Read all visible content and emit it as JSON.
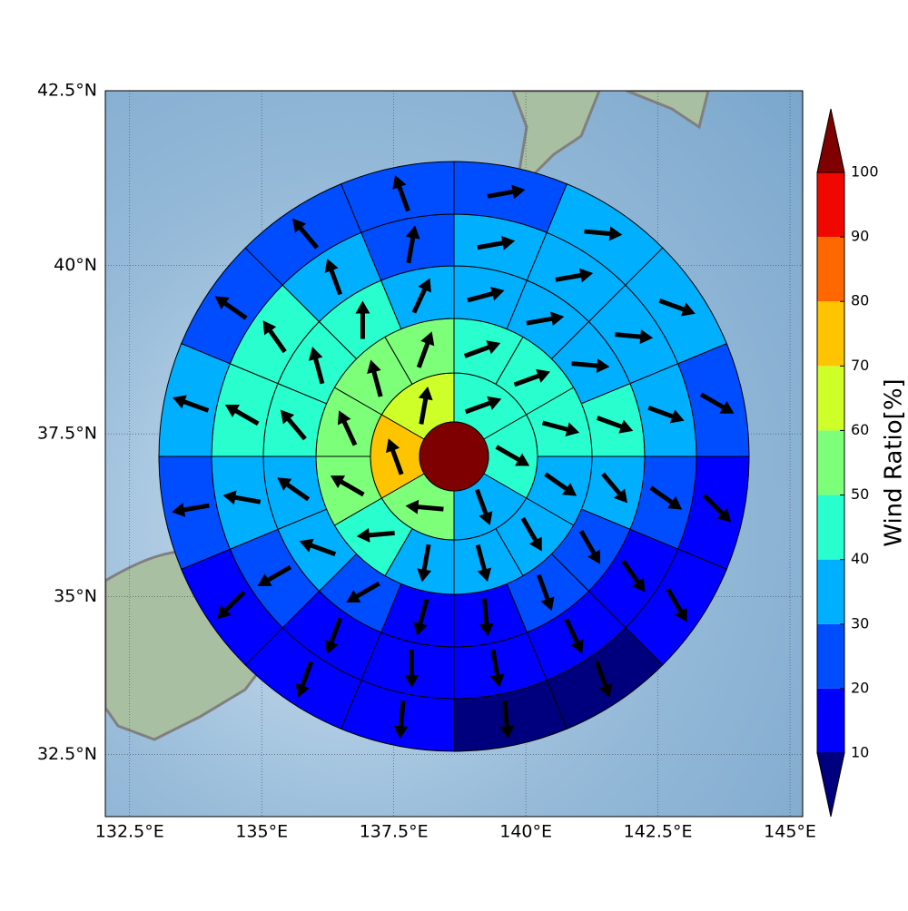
{
  "chart_data": {
    "type": "polar_map",
    "projection": "mercator",
    "grid": true,
    "xlim": [
      132.04,
      145.24
    ],
    "ylim": [
      31.5,
      42.5
    ],
    "xticks": [
      {
        "value": 132.5,
        "label": "132.5°E"
      },
      {
        "value": 135,
        "label": "135°E"
      },
      {
        "value": 137.5,
        "label": "137.5°E"
      },
      {
        "value": 140,
        "label": "140°E"
      },
      {
        "value": 142.5,
        "label": "142.5°E"
      },
      {
        "value": 145,
        "label": "145°E"
      }
    ],
    "yticks": [
      {
        "value": 32.5,
        "label": "32.5°N"
      },
      {
        "value": 35,
        "label": "35°N"
      },
      {
        "value": 37.5,
        "label": "37.5°N"
      },
      {
        "value": 40,
        "label": "40°N"
      },
      {
        "value": 42.5,
        "label": "42.5°N"
      }
    ],
    "colorbar": {
      "label": "Wind Ratio[%]",
      "levels": [
        10,
        20,
        30,
        40,
        50,
        60,
        70,
        80,
        90,
        100
      ],
      "colors": [
        "#00007f",
        "#0000ff",
        "#004cff",
        "#00b0ff",
        "#29ffce",
        "#7dff7a",
        "#ceff29",
        "#ffc400",
        "#ff6800",
        "#f00800",
        "#7f0000"
      ]
    },
    "center_value": 105,
    "rings": [
      {
        "values": [
          45,
          45,
          35,
          55,
          75,
          65
        ],
        "wind_dir": [
          70,
          120,
          160,
          275,
          340,
          10
        ]
      },
      {
        "values": [
          45,
          45,
          45,
          35,
          35,
          35,
          35,
          45,
          55,
          55,
          55,
          55
        ],
        "wind_dir": [
          70,
          70,
          105,
          125,
          150,
          165,
          190,
          265,
          300,
          335,
          345,
          20
        ]
      },
      {
        "values": [
          35,
          35,
          35,
          45,
          35,
          25,
          25,
          15,
          15,
          25,
          35,
          35,
          45,
          45,
          45,
          35
        ],
        "wind_dir": [
          75,
          80,
          95,
          110,
          140,
          150,
          160,
          175,
          195,
          240,
          290,
          305,
          320,
          345,
          0,
          25
        ]
      },
      {
        "values": [
          35,
          35,
          35,
          35,
          25,
          15,
          15,
          15,
          15,
          15,
          25,
          35,
          45,
          45,
          35,
          25
        ],
        "wind_dir": [
          80,
          80,
          95,
          110,
          125,
          145,
          155,
          170,
          180,
          200,
          240,
          280,
          300,
          325,
          340,
          10
        ]
      },
      {
        "values": [
          25,
          35,
          35,
          25,
          15,
          15,
          5,
          5,
          15,
          15,
          15,
          25,
          35,
          25,
          25,
          25
        ],
        "wind_dir": [
          80,
          95,
          110,
          120,
          135,
          150,
          160,
          175,
          185,
          200,
          225,
          260,
          290,
          305,
          320,
          340
        ]
      }
    ]
  }
}
